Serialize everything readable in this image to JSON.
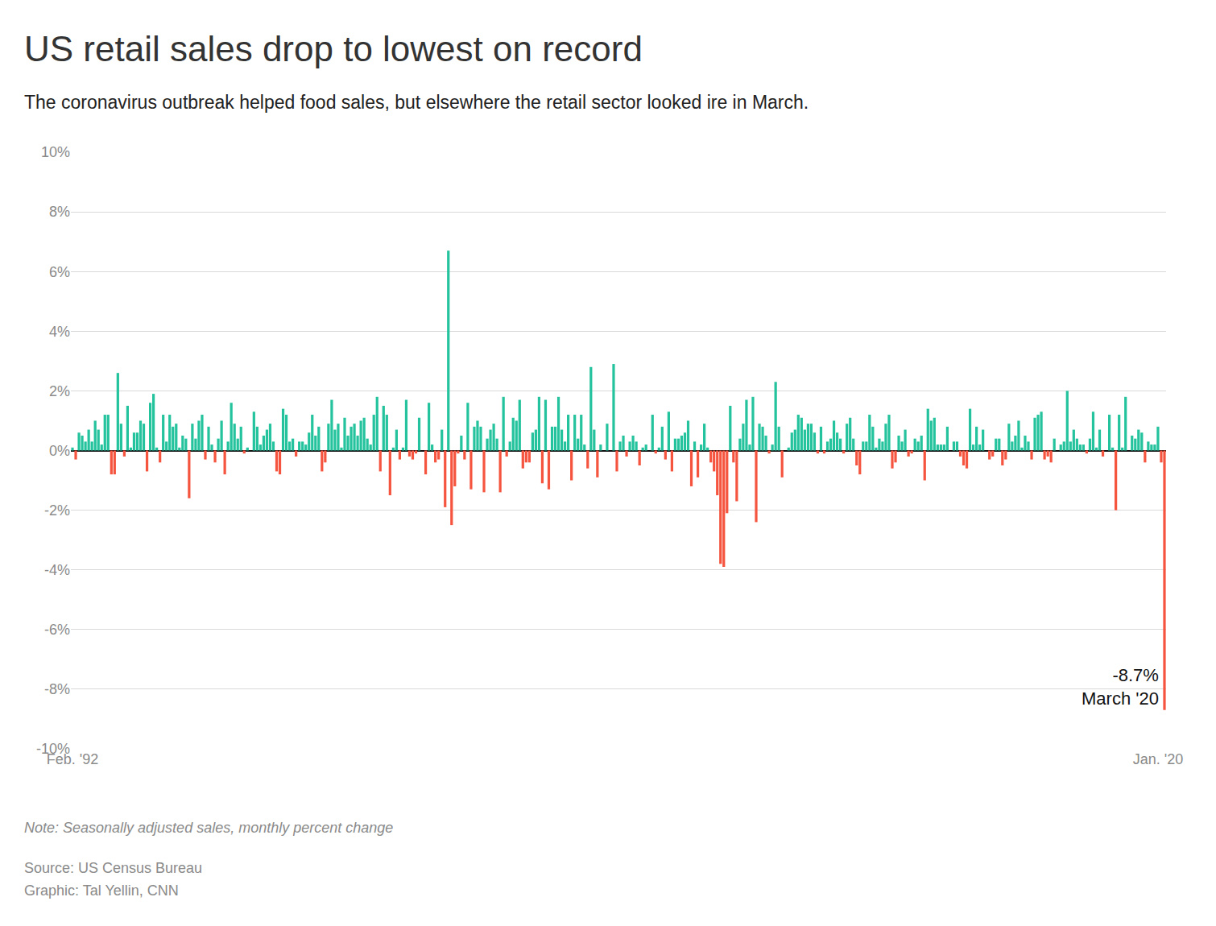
{
  "chart_data": {
    "type": "bar",
    "title": "US retail sales drop to lowest on record",
    "subtitle": "The coronavirus outbreak helped food sales, but elsewhere the retail sector looked ire in March.",
    "note": "Note: Seasonally adjusted sales, monthly percent change",
    "source": "Source: US Census Bureau",
    "credit": "Graphic: Tal Yellin, CNN",
    "annotation": [
      "-8.7%",
      "March '20"
    ],
    "grid": true,
    "ylim": [
      -10,
      10
    ],
    "yticks": [
      {
        "value": -10,
        "label": "-10%"
      },
      {
        "value": -8,
        "label": "-8%"
      },
      {
        "value": -6,
        "label": "-6%"
      },
      {
        "value": -4,
        "label": "-4%"
      },
      {
        "value": -2,
        "label": "-2%"
      },
      {
        "value": 0,
        "label": "0%"
      },
      {
        "value": 2,
        "label": "2%"
      },
      {
        "value": 4,
        "label": "4%"
      },
      {
        "value": 6,
        "label": "6%"
      },
      {
        "value": 8,
        "label": "8%"
      },
      {
        "value": 10,
        "label": "10%"
      }
    ],
    "categories": [
      "Feb. '92",
      null,
      null,
      null,
      null,
      null,
      null,
      null,
      null,
      null,
      null,
      null,
      null,
      null,
      null,
      null,
      null,
      null,
      null,
      null,
      null,
      null,
      null,
      null,
      null,
      null,
      null,
      null,
      null,
      null,
      null,
      null,
      null,
      null,
      null,
      null,
      null,
      null,
      null,
      null,
      null,
      null,
      null,
      null,
      null,
      null,
      null,
      null,
      null,
      null,
      null,
      null,
      null,
      null,
      null,
      null,
      null,
      null,
      null,
      null,
      null,
      null,
      null,
      null,
      null,
      null,
      null,
      null,
      null,
      null,
      null,
      null,
      null,
      null,
      null,
      null,
      null,
      null,
      null,
      null,
      null,
      null,
      null,
      null,
      null,
      null,
      null,
      null,
      null,
      null,
      null,
      null,
      null,
      null,
      null,
      null,
      null,
      null,
      null,
      null,
      null,
      null,
      null,
      null,
      null,
      null,
      null,
      null,
      null,
      null,
      null,
      null,
      null,
      null,
      null,
      null,
      null,
      null,
      null,
      null,
      null,
      null,
      null,
      null,
      null,
      null,
      null,
      null,
      null,
      null,
      null,
      null,
      null,
      null,
      null,
      null,
      null,
      null,
      null,
      null,
      null,
      null,
      null,
      null,
      null,
      null,
      null,
      null,
      null,
      null,
      null,
      null,
      null,
      null,
      null,
      null,
      null,
      null,
      null,
      null,
      null,
      null,
      null,
      null,
      null,
      null,
      null,
      null,
      null,
      null,
      null,
      null,
      null,
      null,
      null,
      null,
      null,
      null,
      null,
      null,
      null,
      null,
      null,
      null,
      null,
      null,
      null,
      null,
      null,
      null,
      null,
      null,
      null,
      null,
      null,
      null,
      null,
      null,
      null,
      null,
      null,
      null,
      null,
      null,
      null,
      null,
      null,
      null,
      null,
      null,
      null,
      null,
      null,
      null,
      null,
      null,
      null,
      null,
      null,
      null,
      null,
      null,
      null,
      null,
      null,
      null,
      null,
      null,
      null,
      null,
      null,
      null,
      null,
      null,
      null,
      null,
      null,
      null,
      null,
      null,
      null,
      null,
      null,
      null,
      null,
      null,
      null,
      null,
      null,
      null,
      null,
      null,
      null,
      null,
      null,
      null,
      null,
      null,
      null,
      null,
      null,
      null,
      null,
      null,
      null,
      null,
      null,
      null,
      null,
      null,
      null,
      null,
      null,
      null,
      null,
      null,
      null,
      null,
      null,
      null,
      null,
      null,
      null,
      null,
      null,
      null,
      null,
      null,
      null,
      null,
      null,
      null,
      null,
      null,
      null,
      null,
      null,
      null,
      null,
      null,
      null,
      null,
      null,
      null,
      null,
      null,
      null,
      null,
      null,
      null,
      null,
      null,
      null,
      null,
      null,
      null,
      null,
      null,
      null,
      null,
      null,
      null,
      null,
      null,
      null,
      null,
      null,
      null,
      null,
      null,
      null,
      null,
      null,
      null,
      null,
      "Jan. '20",
      null,
      null
    ],
    "values": [
      0.1,
      -0.3,
      0.6,
      0.5,
      0.3,
      0.7,
      0.3,
      1.0,
      0.7,
      0.2,
      1.2,
      1.2,
      -0.8,
      -0.8,
      2.6,
      0.9,
      -0.2,
      1.5,
      0.1,
      0.6,
      0.6,
      1.0,
      0.9,
      -0.7,
      1.6,
      1.9,
      0.1,
      -0.4,
      1.2,
      0.3,
      1.2,
      0.8,
      0.9,
      0.1,
      0.5,
      0.4,
      -1.6,
      0.9,
      0.4,
      1.0,
      1.2,
      -0.3,
      0.8,
      0.2,
      -0.4,
      0.4,
      1.0,
      -0.8,
      0.3,
      1.6,
      0.9,
      0.4,
      0.8,
      -0.1,
      0.1,
      0.0,
      1.3,
      0.8,
      0.2,
      0.5,
      0.7,
      0.9,
      0.3,
      -0.7,
      -0.8,
      1.4,
      1.2,
      0.3,
      0.4,
      -0.2,
      0.3,
      0.3,
      0.2,
      0.6,
      1.2,
      0.5,
      0.8,
      -0.7,
      -0.4,
      0.9,
      1.7,
      0.7,
      0.9,
      0.1,
      1.1,
      0.5,
      0.8,
      0.9,
      0.5,
      1.0,
      1.1,
      0.4,
      0.2,
      1.2,
      1.8,
      -0.7,
      1.5,
      1.2,
      -1.5,
      0.1,
      0.7,
      -0.3,
      0.1,
      1.7,
      -0.2,
      -0.3,
      -0.1,
      1.1,
      0.0,
      -0.8,
      1.6,
      0.2,
      -0.4,
      -0.3,
      0.7,
      -1.9,
      6.7,
      -2.5,
      -1.2,
      -0.1,
      0.5,
      -0.3,
      1.6,
      -1.3,
      0.8,
      1.0,
      0.8,
      -1.4,
      0.4,
      0.7,
      0.9,
      0.4,
      -1.4,
      1.8,
      -0.2,
      0.3,
      1.1,
      1.0,
      1.7,
      -0.6,
      -0.4,
      -0.4,
      0.6,
      0.7,
      1.8,
      -1.1,
      1.7,
      -1.3,
      0.8,
      0.8,
      1.8,
      0.7,
      0.3,
      1.2,
      -1.0,
      1.2,
      0.4,
      1.2,
      0.2,
      -0.6,
      2.8,
      0.7,
      -0.9,
      0.2,
      0.0,
      0.9,
      0.0,
      2.9,
      -0.7,
      0.3,
      0.5,
      -0.2,
      0.3,
      0.5,
      0.3,
      -0.5,
      0.1,
      0.2,
      0.0,
      1.2,
      -0.1,
      0.1,
      0.8,
      -0.3,
      1.3,
      -0.7,
      0.4,
      0.4,
      0.5,
      0.6,
      1.0,
      -1.2,
      0.3,
      -0.9,
      0.2,
      0.9,
      0.1,
      -0.4,
      -0.7,
      -1.5,
      -3.8,
      -3.9,
      -2.1,
      1.5,
      -0.4,
      -1.7,
      0.4,
      0.9,
      1.7,
      0.2,
      1.8,
      -2.4,
      0.9,
      0.8,
      0.5,
      -0.1,
      0.2,
      2.3,
      0.8,
      -0.9,
      0.0,
      0.1,
      0.6,
      0.7,
      1.2,
      1.1,
      0.7,
      0.9,
      0.9,
      0.6,
      -0.1,
      0.8,
      -0.1,
      0.3,
      0.4,
      1.0,
      0.6,
      0.4,
      -0.1,
      0.9,
      1.1,
      0.4,
      -0.5,
      -0.8,
      0.3,
      0.3,
      1.2,
      0.8,
      0.1,
      0.4,
      0.3,
      0.9,
      1.2,
      -0.6,
      -0.4,
      0.5,
      0.3,
      0.7,
      -0.2,
      -0.1,
      0.4,
      0.3,
      0.5,
      -1.0,
      1.4,
      1.0,
      1.1,
      0.2,
      0.2,
      0.2,
      0.8,
      0.0,
      0.3,
      0.3,
      -0.2,
      -0.5,
      -0.6,
      1.4,
      0.2,
      0.8,
      0.2,
      0.7,
      0.0,
      -0.3,
      -0.2,
      0.4,
      0.4,
      -0.5,
      -0.3,
      0.9,
      0.3,
      0.5,
      1.0,
      0.1,
      0.5,
      0.3,
      -0.3,
      1.1,
      1.2,
      1.3,
      -0.3,
      -0.2,
      -0.4,
      0.4,
      0.0,
      0.2,
      0.3,
      2.0,
      0.3,
      0.7,
      0.4,
      0.2,
      0.2,
      -0.1,
      0.4,
      1.3,
      0.1,
      0.7,
      -0.2,
      0.0,
      1.2,
      0.1,
      -2.0,
      1.2,
      0.1,
      1.8,
      0.0,
      0.5,
      0.4,
      0.7,
      0.6,
      -0.4,
      0.3,
      0.2,
      0.2,
      0.8,
      -0.4,
      -8.7
    ],
    "colors": [
      "#24c39d",
      "#f5543f",
      "#24c39d",
      "#24c39d",
      "#24c39d",
      "#24c39d",
      "#24c39d",
      "#24c39d",
      "#24c39d",
      "#24c39d",
      "#24c39d",
      "#24c39d",
      "#f5543f",
      "#f5543f",
      "#24c39d",
      "#24c39d",
      "#f5543f",
      "#24c39d",
      "#24c39d",
      "#24c39d",
      "#24c39d",
      "#24c39d",
      "#24c39d",
      "#f5543f",
      "#24c39d",
      "#24c39d",
      "#24c39d",
      "#f5543f",
      "#24c39d",
      "#24c39d",
      "#24c39d",
      "#24c39d",
      "#24c39d",
      "#24c39d",
      "#24c39d",
      "#24c39d",
      "#f5543f",
      "#24c39d",
      "#24c39d",
      "#24c39d",
      "#24c39d",
      "#f5543f",
      "#24c39d",
      "#24c39d",
      "#f5543f",
      "#24c39d",
      "#24c39d",
      "#f5543f",
      "#24c39d",
      "#24c39d",
      "#24c39d",
      "#24c39d",
      "#24c39d",
      "#f5543f",
      "#24c39d",
      "#24c39d",
      "#24c39d",
      "#24c39d",
      "#24c39d",
      "#24c39d",
      "#24c39d",
      "#24c39d",
      "#24c39d",
      "#f5543f",
      "#f5543f",
      "#24c39d",
      "#24c39d",
      "#24c39d",
      "#24c39d",
      "#f5543f",
      "#24c39d",
      "#24c39d",
      "#24c39d",
      "#24c39d",
      "#24c39d",
      "#24c39d",
      "#24c39d",
      "#f5543f",
      "#f5543f",
      "#24c39d",
      "#24c39d",
      "#24c39d",
      "#24c39d",
      "#24c39d",
      "#24c39d",
      "#24c39d",
      "#24c39d",
      "#24c39d",
      "#24c39d",
      "#24c39d",
      "#24c39d",
      "#24c39d",
      "#24c39d",
      "#24c39d",
      "#24c39d",
      "#f5543f",
      "#24c39d",
      "#24c39d",
      "#f5543f",
      "#24c39d",
      "#24c39d",
      "#f5543f",
      "#24c39d",
      "#24c39d",
      "#f5543f",
      "#f5543f",
      "#f5543f",
      "#24c39d",
      "#24c39d",
      "#f5543f",
      "#24c39d",
      "#24c39d",
      "#f5543f",
      "#f5543f",
      "#24c39d",
      "#f5543f",
      "#24c39d",
      "#f5543f",
      "#f5543f",
      "#f5543f",
      "#24c39d",
      "#f5543f",
      "#24c39d",
      "#f5543f",
      "#24c39d",
      "#24c39d",
      "#24c39d",
      "#f5543f",
      "#24c39d",
      "#24c39d",
      "#24c39d",
      "#24c39d",
      "#f5543f",
      "#24c39d",
      "#f5543f",
      "#24c39d",
      "#24c39d",
      "#24c39d",
      "#24c39d",
      "#f5543f",
      "#f5543f",
      "#f5543f",
      "#24c39d",
      "#24c39d",
      "#24c39d",
      "#f5543f",
      "#24c39d",
      "#f5543f",
      "#24c39d",
      "#24c39d",
      "#24c39d",
      "#24c39d",
      "#24c39d",
      "#24c39d",
      "#f5543f",
      "#24c39d",
      "#24c39d",
      "#24c39d",
      "#24c39d",
      "#f5543f",
      "#24c39d",
      "#24c39d",
      "#f5543f",
      "#24c39d",
      "#24c39d",
      "#24c39d",
      "#24c39d",
      "#24c39d",
      "#f5543f",
      "#24c39d",
      "#24c39d",
      "#f5543f",
      "#24c39d",
      "#24c39d",
      "#24c39d",
      "#f5543f",
      "#24c39d",
      "#24c39d",
      "#24c39d",
      "#24c39d",
      "#f5543f",
      "#24c39d",
      "#24c39d",
      "#f5543f",
      "#24c39d",
      "#f5543f",
      "#24c39d",
      "#24c39d",
      "#24c39d",
      "#24c39d",
      "#24c39d",
      "#f5543f",
      "#24c39d",
      "#f5543f",
      "#24c39d",
      "#24c39d",
      "#24c39d",
      "#f5543f",
      "#f5543f",
      "#f5543f",
      "#f5543f",
      "#f5543f",
      "#f5543f",
      "#24c39d",
      "#f5543f",
      "#f5543f",
      "#24c39d",
      "#24c39d",
      "#24c39d",
      "#24c39d",
      "#24c39d",
      "#f5543f",
      "#24c39d",
      "#24c39d",
      "#24c39d",
      "#f5543f",
      "#24c39d",
      "#24c39d",
      "#24c39d",
      "#f5543f",
      "#24c39d",
      "#24c39d",
      "#24c39d",
      "#24c39d",
      "#24c39d",
      "#24c39d",
      "#24c39d",
      "#24c39d",
      "#24c39d",
      "#24c39d",
      "#f5543f",
      "#24c39d",
      "#f5543f",
      "#24c39d",
      "#24c39d",
      "#24c39d",
      "#24c39d",
      "#24c39d",
      "#f5543f",
      "#24c39d",
      "#24c39d",
      "#24c39d",
      "#f5543f",
      "#f5543f",
      "#24c39d",
      "#24c39d",
      "#24c39d",
      "#24c39d",
      "#24c39d",
      "#24c39d",
      "#24c39d",
      "#24c39d",
      "#24c39d",
      "#f5543f",
      "#f5543f",
      "#24c39d",
      "#24c39d",
      "#24c39d",
      "#f5543f",
      "#f5543f",
      "#24c39d",
      "#24c39d",
      "#24c39d",
      "#f5543f",
      "#24c39d",
      "#24c39d",
      "#24c39d",
      "#24c39d",
      "#24c39d",
      "#24c39d",
      "#24c39d",
      "#24c39d",
      "#24c39d",
      "#24c39d",
      "#f5543f",
      "#f5543f",
      "#f5543f",
      "#24c39d",
      "#24c39d",
      "#24c39d",
      "#24c39d",
      "#24c39d",
      "#24c39d",
      "#f5543f",
      "#f5543f",
      "#24c39d",
      "#24c39d",
      "#f5543f",
      "#f5543f",
      "#24c39d",
      "#24c39d",
      "#24c39d",
      "#24c39d",
      "#24c39d",
      "#24c39d",
      "#24c39d",
      "#f5543f",
      "#24c39d",
      "#24c39d",
      "#24c39d",
      "#f5543f",
      "#f5543f",
      "#f5543f",
      "#24c39d",
      "#24c39d",
      "#24c39d",
      "#24c39d",
      "#24c39d",
      "#24c39d",
      "#24c39d",
      "#24c39d",
      "#24c39d",
      "#24c39d",
      "#f5543f",
      "#24c39d",
      "#24c39d",
      "#24c39d",
      "#24c39d",
      "#f5543f",
      "#24c39d",
      "#24c39d",
      "#24c39d",
      "#f5543f",
      "#24c39d",
      "#24c39d",
      "#24c39d",
      "#24c39d",
      "#24c39d",
      "#24c39d",
      "#24c39d",
      "#24c39d",
      "#f5543f",
      "#24c39d",
      "#24c39d",
      "#24c39d",
      "#24c39d",
      "#f5543f",
      "#f5543f"
    ]
  }
}
